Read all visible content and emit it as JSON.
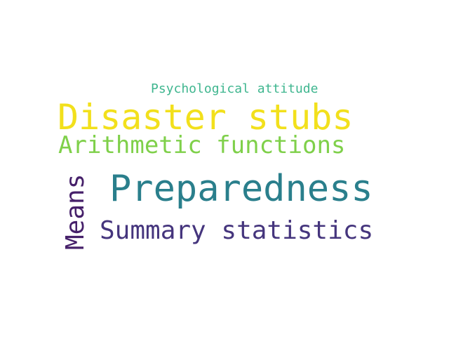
{
  "words": {
    "psychological_attitude": {
      "text": "Psychological attitude",
      "color": "#3fb68f"
    },
    "disaster_stubs": {
      "text": "Disaster stubs",
      "color": "#f2e01c"
    },
    "arithmetic_functions": {
      "text": "Arithmetic functions",
      "color": "#7fd04a"
    },
    "preparedness": {
      "text": "Preparedness",
      "color": "#2a7f8c"
    },
    "summary_statistics": {
      "text": "Summary statistics",
      "color": "#45357d"
    },
    "means": {
      "text": "Means",
      "color": "#46206a"
    }
  }
}
